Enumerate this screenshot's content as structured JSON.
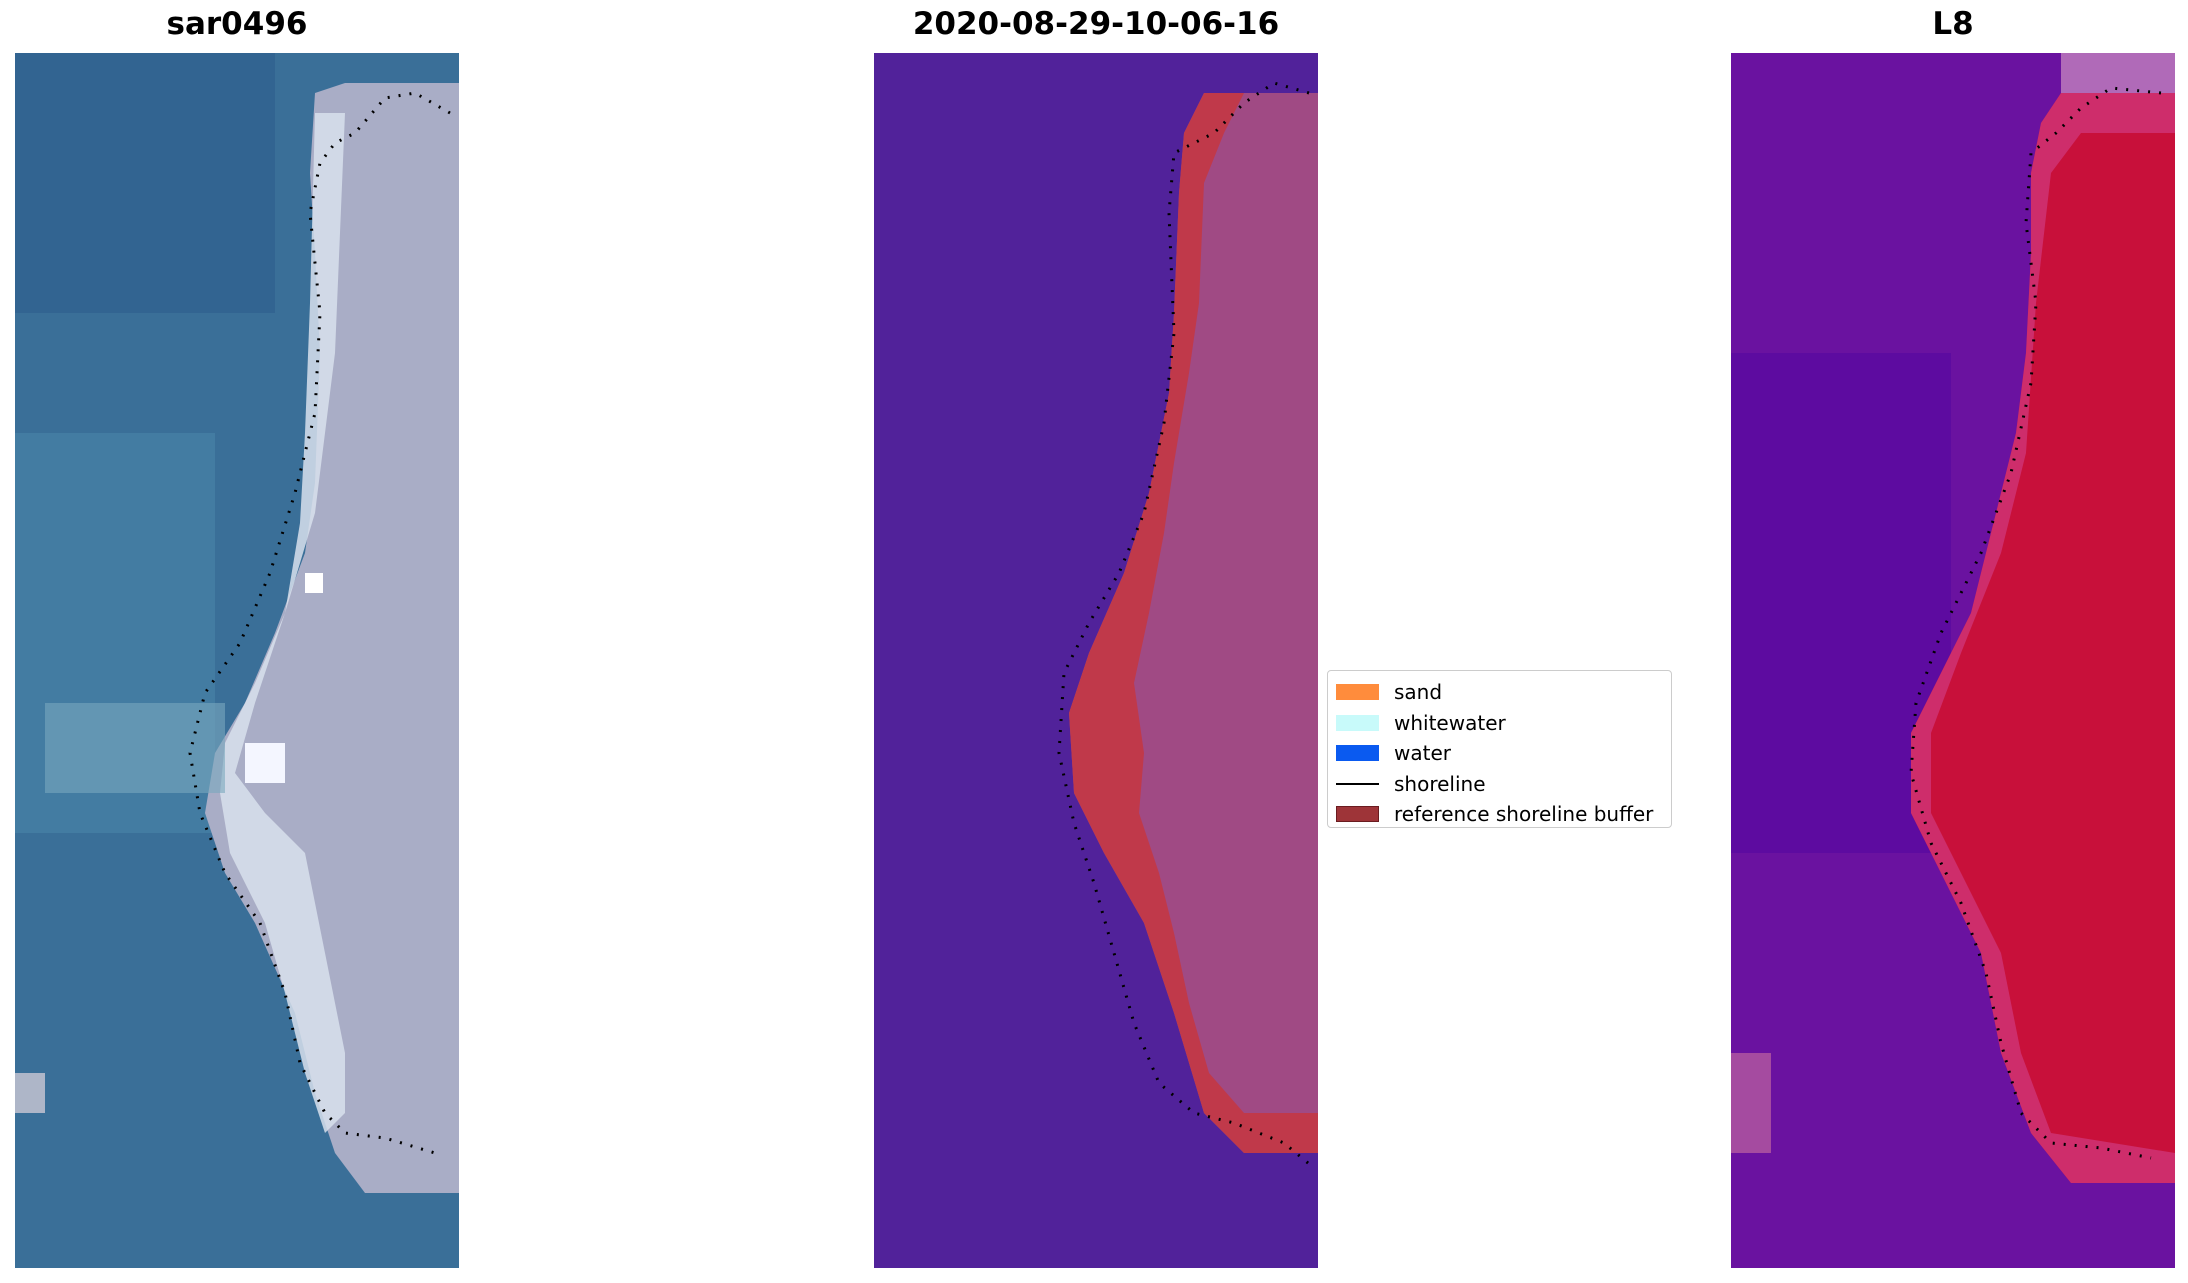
{
  "panels": [
    {
      "title": "sar0496"
    },
    {
      "title": "2020-08-29-10-06-16"
    },
    {
      "title": "L8"
    }
  ],
  "legend": {
    "items": [
      {
        "label": "sand",
        "color": "#ff8c3c",
        "kind": "patch"
      },
      {
        "label": "whitewater",
        "color": "#c8fafa",
        "kind": "patch"
      },
      {
        "label": "water",
        "color": "#0a5af0",
        "kind": "patch"
      },
      {
        "label": "shoreline",
        "color": "#000000",
        "kind": "line"
      },
      {
        "label": "reference shoreline buffer",
        "color": "#9e3438",
        "kind": "patch"
      }
    ]
  },
  "colors": {
    "rgb_water": "#3a6f98",
    "rgb_land": "#aab0c8",
    "classified_water": "#51229a",
    "classified_land": "#a04a84",
    "buffer": "#c0394a",
    "l8_water": "#5a0aa0",
    "l8_land": "#c8103a"
  }
}
